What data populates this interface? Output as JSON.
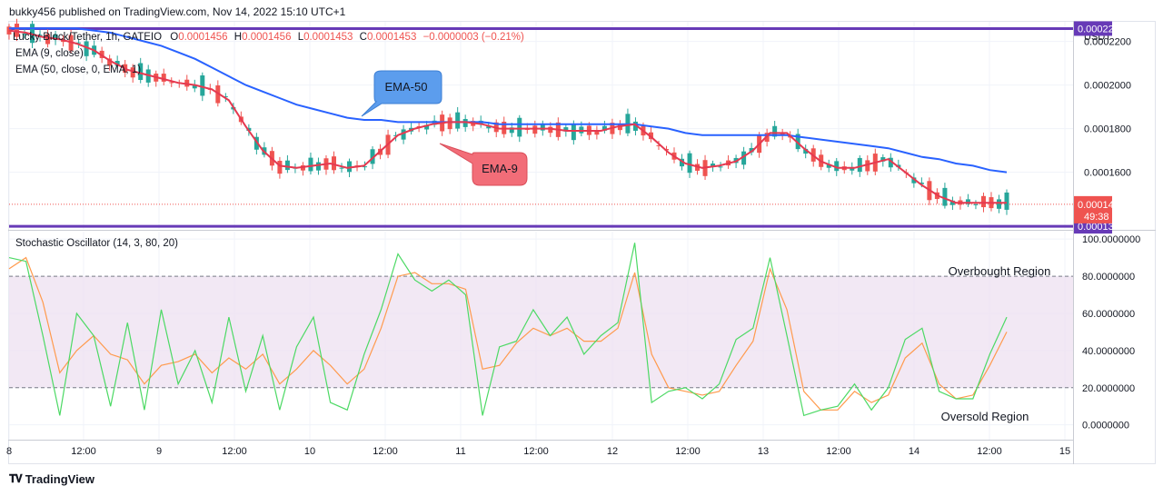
{
  "header": {
    "published": "bukky456 published on TradingView.com, Nov 14, 2022 15:10 UTC+1"
  },
  "legend": {
    "symbol": "Lucky Block/Tether, 1h, GATEIO",
    "o_label": "O",
    "o": "0.0001456",
    "h_label": "H",
    "h": "0.0001456",
    "l_label": "L",
    "l": "0.0001453",
    "c_label": "C",
    "c": "0.0001453",
    "change": "−0.0000003 (−0.21%)",
    "ema9": "EMA (9, close)",
    "ema50": "EMA (50, close, 0, EMA, 1)",
    "stoch": "Stochastic Oscillator (14, 3, 80, 20)"
  },
  "currency": "USDT",
  "price_labels": [
    "0.0002200",
    "0.0002000",
    "0.0001800",
    "0.0001600"
  ],
  "price_badges": {
    "top": "0.0002259",
    "last": "0.0001453",
    "countdown": "49:38",
    "bottom": "0.0001352"
  },
  "osc_labels": [
    "100.0000000",
    "80.0000000",
    "60.0000000",
    "40.0000000",
    "20.0000000",
    "0.0000000"
  ],
  "time_labels": [
    "8",
    "12:00",
    "9",
    "12:00",
    "10",
    "12:00",
    "11",
    "12:00",
    "12",
    "12:00",
    "13",
    "12:00",
    "14",
    "12:00",
    "15"
  ],
  "annotations": {
    "ema50": "EMA-50",
    "ema9": "EMA-9",
    "overbought": "Overbought Region",
    "oversold": "Oversold Region"
  },
  "footer": {
    "brand": "TradingView"
  },
  "colors": {
    "up": "#26a69a",
    "down": "#ef5350",
    "ema9": "#e53950",
    "ema50": "#2962ff",
    "hline": "#673ab7",
    "stoch_k": "#4cd964",
    "stoch_d": "#ff9a4d",
    "band": "#ede0f0"
  },
  "chart_data": [
    {
      "type": "candlestick",
      "title": "Lucky Block/Tether, 1h, GATEIO",
      "ylim": [
        0.000134,
        0.000229
      ],
      "horizontal_lines": [
        0.0002259,
        0.0001352
      ],
      "last_price": 0.0001453,
      "series": [
        {
          "name": "EMA (9, close)",
          "values": [
            0.000225,
            0.000224,
            0.000222,
            0.000221,
            0.000219,
            0.000216,
            0.000211,
            0.000207,
            0.000205,
            0.000203,
            0.000201,
            0.0002,
            0.000198,
            0.000193,
            0.000181,
            0.00017,
            0.000163,
            0.000162,
            0.000163,
            0.000164,
            0.000162,
            0.000163,
            0.00017,
            0.000177,
            0.00018,
            0.000182,
            0.000183,
            0.000183,
            0.000182,
            0.00018,
            0.00018,
            0.00018,
            0.00018,
            0.000179,
            0.000179,
            0.000179,
            0.000181,
            0.000182,
            0.000176,
            0.000169,
            0.000164,
            0.000162,
            0.000163,
            0.000165,
            0.00017,
            0.000178,
            0.000178,
            0.000171,
            0.000165,
            0.000162,
            0.000162,
            0.000164,
            0.000166,
            0.00016,
            0.000154,
            0.000149,
            0.000146,
            0.000146,
            0.000146,
            0.000146
          ]
        },
        {
          "name": "EMA (50, close, 0, EMA, 1)",
          "values": [
            0.000226,
            0.000226,
            0.000226,
            0.000226,
            0.000226,
            0.000225,
            0.000224,
            0.000222,
            0.00022,
            0.000218,
            0.000215,
            0.000212,
            0.000208,
            0.000204,
            0.0002,
            0.000197,
            0.000194,
            0.000191,
            0.000189,
            0.000187,
            0.000185,
            0.000184,
            0.000184,
            0.000183,
            0.000183,
            0.000183,
            0.000183,
            0.000183,
            0.000183,
            0.000182,
            0.000182,
            0.000182,
            0.000182,
            0.000182,
            0.000182,
            0.000182,
            0.000182,
            0.000182,
            0.000181,
            0.00018,
            0.000178,
            0.000177,
            0.000177,
            0.000177,
            0.000177,
            0.000177,
            0.000177,
            0.000176,
            0.000175,
            0.000174,
            0.000173,
            0.000172,
            0.000171,
            0.000169,
            0.000167,
            0.000166,
            0.000164,
            0.000163,
            0.000161,
            0.00016
          ]
        }
      ]
    },
    {
      "type": "line",
      "title": "Stochastic Oscillator (14, 3, 80, 20)",
      "ylim": [
        -8,
        104
      ],
      "bands": [
        80,
        20
      ],
      "series": [
        {
          "name": "%K",
          "values": [
            90,
            88,
            48,
            5,
            60,
            48,
            10,
            55,
            8,
            62,
            22,
            40,
            12,
            58,
            18,
            48,
            8,
            42,
            58,
            12,
            8,
            38,
            62,
            92,
            78,
            72,
            78,
            70,
            5,
            42,
            45,
            62,
            48,
            58,
            38,
            48,
            55,
            98,
            12,
            18,
            20,
            14,
            22,
            46,
            52,
            90,
            48,
            5,
            8,
            10,
            22,
            8,
            20,
            46,
            52,
            18,
            14,
            14,
            38,
            58
          ]
        },
        {
          "name": "%D",
          "values": [
            84,
            90,
            66,
            28,
            40,
            48,
            38,
            35,
            22,
            32,
            34,
            38,
            28,
            36,
            30,
            38,
            22,
            30,
            40,
            32,
            22,
            30,
            52,
            80,
            82,
            76,
            76,
            73,
            30,
            32,
            44,
            52,
            48,
            52,
            45,
            45,
            52,
            82,
            38,
            20,
            18,
            16,
            18,
            32,
            45,
            84,
            62,
            18,
            8,
            8,
            18,
            12,
            16,
            36,
            44,
            22,
            14,
            16,
            32,
            50
          ]
        }
      ]
    }
  ]
}
